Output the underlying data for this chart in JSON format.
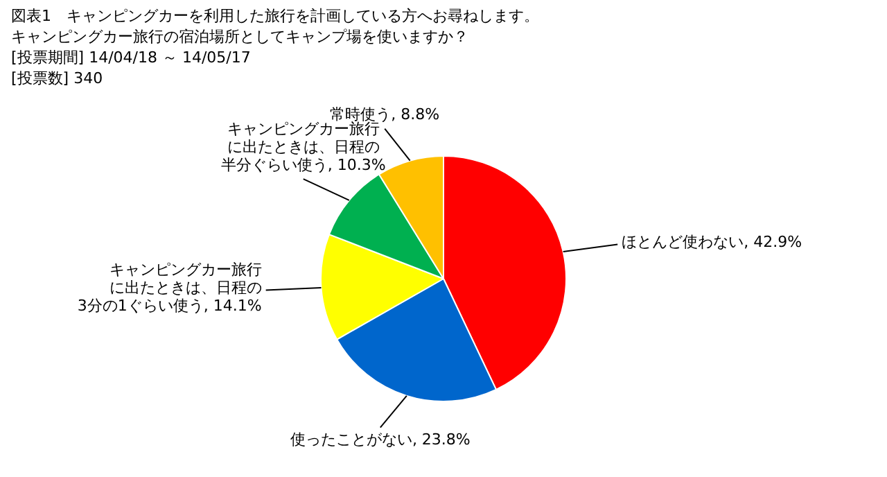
{
  "chart_data": {
    "type": "pie",
    "title": "図表1　キャンピングカーを利用した旅行を計画している方へお尋ねします。",
    "subtitle": "キャンピングカー旅行の宿泊場所としてキャンプ場を使いますか？",
    "annotations": [
      "[投票期間] 14/04/18 ～ 14/05/17",
      "[投票数] 340"
    ],
    "categories": [
      "ほとんど使わない",
      "使ったことがない",
      "キャンピングカー旅行に出たときは、日程の3分の1ぐらい使う",
      "キャンピングカー旅行に出たときは、日程の半分ぐらい使う",
      "常時使う"
    ],
    "values": [
      42.9,
      23.8,
      14.1,
      10.3,
      8.8
    ],
    "value_labels": [
      ", 42.9%",
      ", 23.8%",
      ", 14.1%",
      ", 10.3%",
      ", 8.8%"
    ],
    "colors": [
      "#ff0000",
      "#0066cc",
      "#ffff00",
      "#00b050",
      "#ffc000"
    ]
  }
}
